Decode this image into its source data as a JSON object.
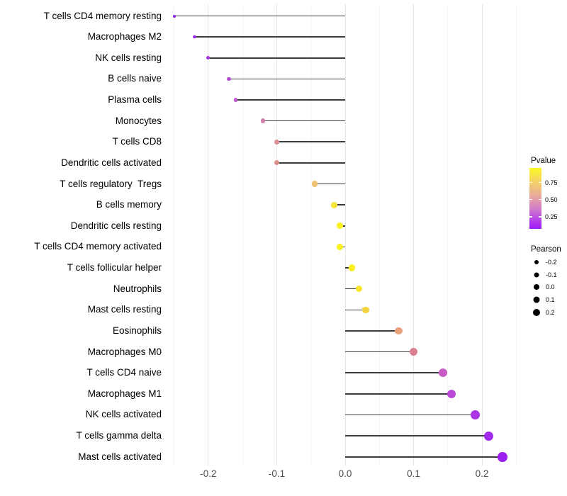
{
  "chart_data": {
    "type": "scatter",
    "variant": "lollipop",
    "title": "",
    "xlabel": "",
    "ylabel": "",
    "xlim": [
      -0.26,
      0.26
    ],
    "grid": "vertical-major-minor",
    "categories": [
      "T cells CD4 memory resting",
      "Macrophages M2",
      "NK cells resting",
      "B cells naive",
      "Plasma cells",
      "Monocytes",
      "T cells CD8",
      "Dendritic cells activated",
      "T cells regulatory  Tregs",
      "B cells memory",
      "Dendritic cells resting",
      "T cells CD4 memory activated",
      "T cells follicular helper",
      "Neutrophils",
      "Mast cells resting",
      "Eosinophils",
      "Macrophages M0",
      "T cells CD4 naive",
      "Macrophages M1",
      "NK cells activated",
      "T cells gamma delta",
      "Mast cells activated"
    ],
    "values": [
      -0.25,
      -0.22,
      -0.2,
      -0.17,
      -0.16,
      -0.12,
      -0.1,
      -0.1,
      -0.045,
      -0.016,
      -0.008,
      -0.008,
      0.01,
      0.02,
      0.03,
      0.078,
      0.1,
      0.143,
      0.155,
      0.19,
      0.21,
      0.23
    ],
    "point_colors": [
      "#8224DC",
      "#9A2EE4",
      "#A535E1",
      "#B34FD6",
      "#BE55CE",
      "#D07FAB",
      "#DC8F92",
      "#DC8F8C",
      "#EDC26F",
      "#F6E63A",
      "#FBF320",
      "#FBF320",
      "#FAF01F",
      "#F8E72E",
      "#F2D53C",
      "#E8A07D",
      "#DB8093",
      "#C75BC3",
      "#BC4AD8",
      "#AB36E5",
      "#A02BEB",
      "#991FF0"
    ],
    "stem_color": "#3c3c3c",
    "x_ticks": [
      -0.2,
      -0.1,
      0.0,
      0.1,
      0.2
    ],
    "x_tick_labels": [
      "-0.2",
      "-0.1",
      "0.0",
      "0.1",
      "0.2"
    ],
    "legend": {
      "position": "right",
      "pvalue": {
        "title": "Pvalue",
        "ticks": [
          {
            "label": "0.75",
            "pct": 24
          },
          {
            "label": "0.50",
            "pct": 52
          },
          {
            "label": "0.25",
            "pct": 80
          }
        ],
        "gradient_stops": [
          {
            "color": "#FBF725",
            "pct": 0
          },
          {
            "color": "#F2CC73",
            "pct": 27
          },
          {
            "color": "#E6A59E",
            "pct": 48
          },
          {
            "color": "#D37FC9",
            "pct": 66
          },
          {
            "color": "#B846E8",
            "pct": 84
          },
          {
            "color": "#A01BF5",
            "pct": 100
          }
        ]
      },
      "pearson": {
        "title": "Pearson",
        "items": [
          {
            "label": "-0.2",
            "value": -0.2
          },
          {
            "label": "-0.1",
            "value": -0.1
          },
          {
            "label": "0.0",
            "value": 0.0
          },
          {
            "label": "0.1",
            "value": 0.1
          },
          {
            "label": "0.2",
            "value": 0.2
          }
        ]
      }
    }
  }
}
